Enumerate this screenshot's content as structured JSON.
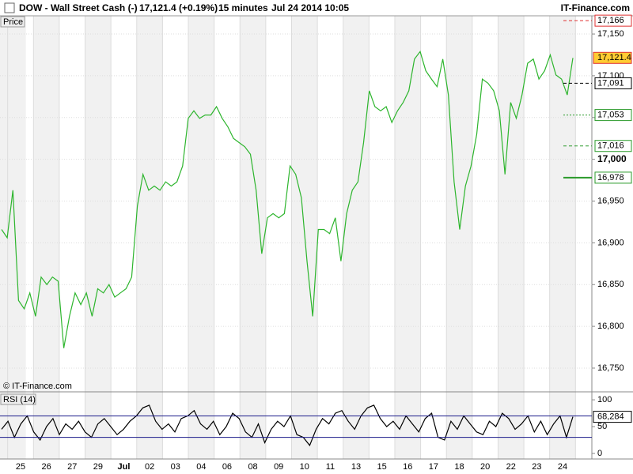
{
  "header": {
    "instrument": "DOW - Wall Street Cash (-)",
    "quote": "17,121.4 (+0.19%)",
    "interval": "15 minutes",
    "time": "Jul 24 2014 10:05",
    "brand": "IT-Finance.com"
  },
  "watermark": "© IT-Finance.com",
  "chart_data": [
    {
      "type": "line",
      "title": "Price",
      "ylim": [
        16721.6,
        17171.8
      ],
      "yticks": [
        {
          "value": 16750,
          "label": "16,750"
        },
        {
          "value": 16800,
          "label": "16,800"
        },
        {
          "value": 16850,
          "label": "16,850"
        },
        {
          "value": 16900,
          "label": "16,900"
        },
        {
          "value": 16950,
          "label": "16,950"
        },
        {
          "value": 17000,
          "label": "17,000"
        },
        {
          "value": 17050,
          "label": "17,050"
        },
        {
          "value": 17100,
          "label": "17,100"
        },
        {
          "value": 17150,
          "label": "17,150"
        }
      ],
      "emphasized_tick": 17000,
      "grid": true,
      "series": [
        {
          "color": "#2db52d",
          "values": [
            16916,
            16906,
            16963,
            16831,
            16821,
            16840,
            16812,
            16859,
            16850,
            16859,
            16854,
            16774,
            16812,
            16840,
            16826,
            16840,
            16812,
            16845,
            16840,
            16850,
            16835,
            16840,
            16845,
            16859,
            16944,
            16982,
            16963,
            16968,
            16963,
            16973,
            16968,
            16973,
            16992,
            17049,
            17058,
            17049,
            17053,
            17053,
            17063,
            17049,
            17039,
            17025,
            17020,
            17015,
            17006,
            16963,
            16887,
            16930,
            16935,
            16930,
            16935,
            16992,
            16982,
            16954,
            16878,
            16812,
            16916,
            16916,
            16911,
            16930,
            16878,
            16935,
            16963,
            16973,
            17020,
            17082,
            17063,
            17058,
            17063,
            17044,
            17058,
            17068,
            17082,
            17120,
            17129,
            17106,
            17096,
            17087,
            17120,
            17077,
            16973,
            16916,
            16968,
            16992,
            17030,
            17096,
            17091,
            17082,
            17058,
            16982,
            17068,
            17049,
            17077,
            17115,
            17120,
            17096,
            17106,
            17125,
            17101,
            17096,
            17077,
            17121.4
          ]
        }
      ],
      "levels": [
        {
          "value": 17166,
          "label": "17,166",
          "color": "#e03030",
          "style": "dashed"
        },
        {
          "value": 17121.4,
          "label": "17,121.4",
          "color": "#e03030",
          "style": "box"
        },
        {
          "value": 17091,
          "label": "17,091",
          "color": "#000000",
          "style": "dashed"
        },
        {
          "value": 17053,
          "label": "17,053",
          "color": "#2a9a2a",
          "style": "dotted"
        },
        {
          "value": 17016,
          "label": "17,016",
          "color": "#2a9a2a",
          "style": "dashed"
        },
        {
          "value": 16978,
          "label": "16,978",
          "color": "#2a9a2a",
          "style": "solid"
        }
      ]
    },
    {
      "type": "line",
      "title": "RSI (14)",
      "ylim": [
        -10.4,
        113.4
      ],
      "yticks": [
        0,
        50,
        100
      ],
      "series": [
        {
          "color": "#000000",
          "values": [
            45,
            60,
            30,
            55,
            70,
            40,
            25,
            50,
            65,
            35,
            55,
            45,
            60,
            40,
            30,
            55,
            65,
            50,
            35,
            45,
            60,
            70,
            85,
            90,
            60,
            45,
            55,
            40,
            65,
            70,
            80,
            55,
            45,
            60,
            35,
            50,
            75,
            65,
            40,
            30,
            55,
            20,
            45,
            60,
            50,
            70,
            35,
            30,
            15,
            45,
            65,
            55,
            75,
            80,
            60,
            45,
            70,
            85,
            90,
            65,
            50,
            60,
            45,
            70,
            55,
            40,
            65,
            75,
            30,
            25,
            60,
            45,
            70,
            55,
            40,
            35,
            60,
            50,
            75,
            65,
            45,
            55,
            70,
            40,
            60,
            35,
            55,
            70,
            30,
            68.284
          ]
        }
      ],
      "levels": [
        {
          "value": 70,
          "color": "#1a1a8a",
          "style": "solid"
        },
        {
          "value": 30,
          "color": "#1a1a8a",
          "style": "solid"
        },
        {
          "value": 68.284,
          "label": "68,284",
          "color": "#000000",
          "style": "box"
        }
      ],
      "x_labels": [
        "25",
        "26",
        "27",
        "29",
        "Jul",
        "02",
        "03",
        "04",
        "06",
        "08",
        "09",
        "10",
        "11",
        "13",
        "15",
        "16",
        "17",
        "18",
        "20",
        "22",
        "23",
        "24"
      ],
      "emphasized_label_index": 4
    }
  ]
}
